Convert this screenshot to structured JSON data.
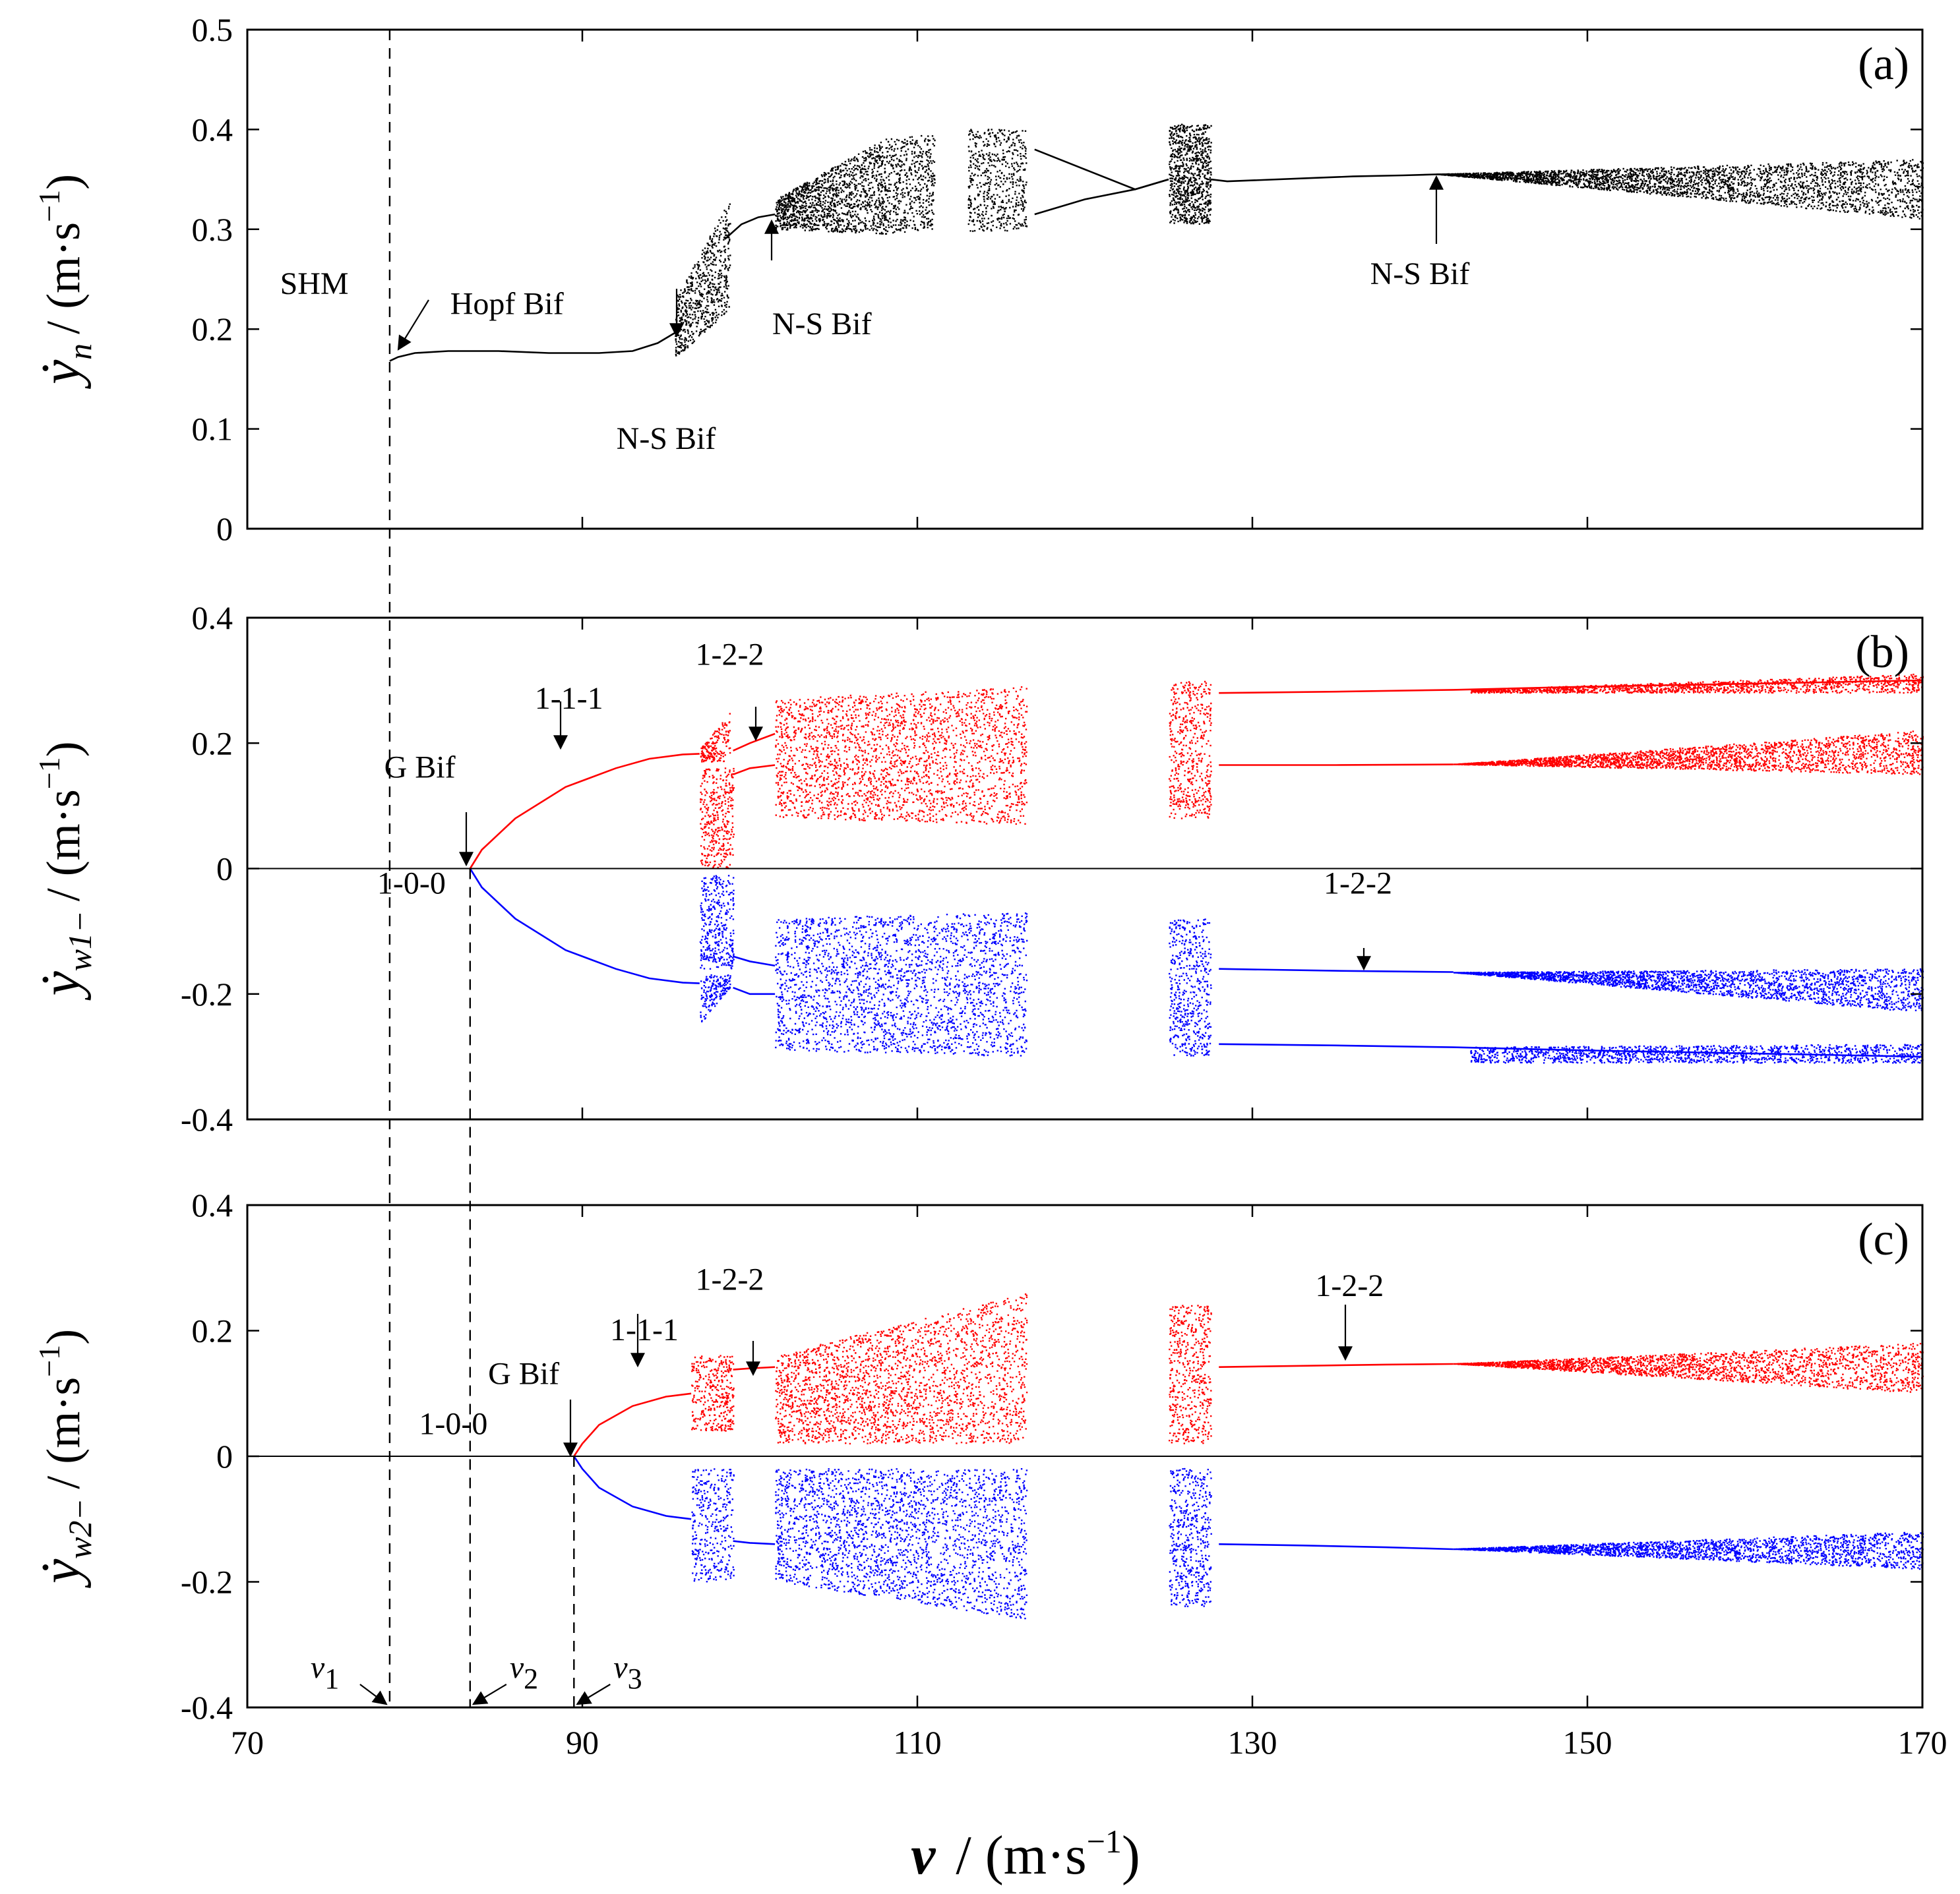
{
  "chart_data": {
    "type": "scatter",
    "subtype": "bifurcation-diagram",
    "shared_x": {
      "label_var": "v",
      "label_unit": "(m·s",
      "label_exp": "−1",
      "label_close": ")",
      "range": [
        70,
        170
      ],
      "ticks": [
        "70",
        "90",
        "110",
        "130",
        "150",
        "170"
      ]
    },
    "critical_speeds": [
      {
        "name": "v",
        "sub": "1",
        "x": 78.5
      },
      {
        "name": "v",
        "sub": "2",
        "x": 83.3
      },
      {
        "name": "v",
        "sub": "3",
        "x": 89.5
      }
    ],
    "panels": [
      {
        "id": "a",
        "label": "(a)",
        "ylabel_var": "ẏ",
        "ylabel_sub": "n",
        "ylabel_unit": "/ (m·s",
        "ylabel_exp": "−1",
        "ylabel_close": ")",
        "ylim": [
          0,
          0.5
        ],
        "yticks": [
          "0",
          "0.1",
          "0.2",
          "0.3",
          "0.4",
          "0.5"
        ],
        "color": "#000000",
        "branches": [
          {
            "x": [
              78.5,
              79,
              80,
              82,
              85,
              88,
              91,
              93,
              94.5,
              95.5,
              96
            ],
            "y": [
              0.168,
              0.172,
              0.176,
              0.178,
              0.178,
              0.176,
              0.176,
              0.178,
              0.186,
              0.196,
              0.205
            ]
          },
          {
            "x": [
              98.5,
              99.5,
              100.5,
              101.5
            ],
            "y": [
              0.29,
              0.305,
              0.312,
              0.315
            ]
          },
          {
            "x": [
              127.5,
              128.5,
              130,
              133,
              136,
              139,
              141,
              142
            ],
            "y": [
              0.35,
              0.348,
              0.349,
              0.351,
              0.353,
              0.354,
              0.355,
              0.355
            ]
          },
          {
            "x": [
              117,
              120,
              123,
              125
            ],
            "y": [
              0.38,
              0.36,
              0.34,
              0.35
            ]
          },
          {
            "x": [
              117,
              120,
              123,
              125
            ],
            "y": [
              0.315,
              0.33,
              0.34,
              0.35
            ]
          }
        ],
        "chaos_regions": [
          {
            "x": [
              95.5,
              98.8
            ],
            "y_lo": [
              0.17,
              0.22
            ],
            "y_hi": [
              0.23,
              0.33
            ],
            "density": 650
          },
          {
            "x": [
              101.5,
              108
            ],
            "y_lo": [
              0.3,
              0.295
            ],
            "y_hi": [
              0.33,
              0.39
            ],
            "density": 1300
          },
          {
            "x": [
              108,
              111
            ],
            "y_lo": [
              0.295,
              0.3
            ],
            "y_hi": [
              0.39,
              0.395
            ],
            "density": 500
          },
          {
            "x": [
              113,
              116.5
            ],
            "y_lo": [
              0.298,
              0.298
            ],
            "y_hi": [
              0.4,
              0.4
            ],
            "density": 550
          },
          {
            "x": [
              125,
              127.5
            ],
            "y_lo": [
              0.305,
              0.305
            ],
            "y_hi": [
              0.405,
              0.405
            ],
            "density": 900
          },
          {
            "x": [
              141,
              170
            ],
            "y_lo": [
              0.355,
              0.31
            ],
            "y_hi": [
              0.355,
              0.37
            ],
            "density": 3200
          }
        ],
        "zero_line": false,
        "annotations": [
          {
            "text": "SHM",
            "x": 74,
            "y": 0.235
          },
          {
            "text": "Hopf Bif",
            "x": 85.5,
            "y": 0.215
          },
          {
            "text": "N-S Bif",
            "x": 95,
            "y": 0.08
          },
          {
            "text": "N-S Bif",
            "x": 104.3,
            "y": 0.195
          },
          {
            "text": "N-S Bif",
            "x": 140,
            "y": 0.245
          }
        ]
      },
      {
        "id": "b",
        "label": "(b)",
        "ylabel_var": "ẏ",
        "ylabel_sub": "w1−",
        "ylabel_unit": "/ (m·s",
        "ylabel_exp": "−1",
        "ylabel_close": ")",
        "ylim": [
          -0.4,
          0.4
        ],
        "yticks": [
          "-0.4",
          "-0.2",
          "0",
          "0.2",
          "0.4"
        ],
        "zero_line": true,
        "branches": [
          {
            "color": "#ff0000",
            "x": [
              83.3,
              84,
              86,
              89,
              92,
              94,
              96,
              97
            ],
            "y": [
              0.0,
              0.03,
              0.08,
              0.13,
              0.16,
              0.175,
              0.182,
              0.183
            ]
          },
          {
            "color": "#0000ff",
            "x": [
              83.3,
              84,
              86,
              89,
              92,
              94,
              96,
              97
            ],
            "y": [
              0.0,
              -0.03,
              -0.08,
              -0.13,
              -0.16,
              -0.175,
              -0.182,
              -0.183
            ]
          },
          {
            "color": "#ff0000",
            "x": [
              99,
              100,
              101.5
            ],
            "y": [
              0.188,
              0.2,
              0.215
            ]
          },
          {
            "color": "#ff0000",
            "x": [
              99,
              100,
              101.5
            ],
            "y": [
              0.15,
              0.16,
              0.165
            ]
          },
          {
            "color": "#0000ff",
            "x": [
              99,
              100,
              101.5
            ],
            "y": [
              -0.14,
              -0.148,
              -0.155
            ]
          },
          {
            "color": "#0000ff",
            "x": [
              99,
              100,
              101.5
            ],
            "y": [
              -0.19,
              -0.2,
              -0.2
            ]
          },
          {
            "color": "#ff0000",
            "x": [
              128,
              135,
              142,
              150,
              160,
              170
            ],
            "y": [
              0.28,
              0.282,
              0.285,
              0.29,
              0.295,
              0.3
            ]
          },
          {
            "color": "#ff0000",
            "x": [
              128,
              135,
              142
            ],
            "y": [
              0.165,
              0.165,
              0.166
            ]
          },
          {
            "color": "#0000ff",
            "x": [
              128,
              135,
              142
            ],
            "y": [
              -0.16,
              -0.163,
              -0.165
            ]
          },
          {
            "color": "#0000ff",
            "x": [
              128,
              135,
              142,
              150,
              160,
              170
            ],
            "y": [
              -0.28,
              -0.282,
              -0.285,
              -0.29,
              -0.295,
              -0.3
            ]
          }
        ],
        "chaos_regions": [
          {
            "color": "#ff0000",
            "x": [
              97,
              98.8
            ],
            "y_lo": [
              0.17,
              0.17
            ],
            "y_hi": [
              0.19,
              0.25
            ],
            "density": 180
          },
          {
            "color": "#0000ff",
            "x": [
              97,
              98.8
            ],
            "y_lo": [
              -0.25,
              -0.19
            ],
            "y_hi": [
              -0.17,
              -0.17
            ],
            "density": 180
          },
          {
            "color": "#ff0000",
            "x": [
              97,
              99
            ],
            "y_lo": [
              0.0,
              0.0
            ],
            "y_hi": [
              0.16,
              0.16
            ],
            "density": 350
          },
          {
            "color": "#0000ff",
            "x": [
              97,
              99
            ],
            "y_lo": [
              -0.16,
              -0.16
            ],
            "y_hi": [
              -0.01,
              -0.01
            ],
            "density": 350
          },
          {
            "color": "#ff0000",
            "x": [
              101.5,
              116.5
            ],
            "y_lo": [
              0.08,
              0.07
            ],
            "y_hi": [
              0.27,
              0.29
            ],
            "density": 2400
          },
          {
            "color": "#0000ff",
            "x": [
              101.5,
              116.5
            ],
            "y_lo": [
              -0.29,
              -0.3
            ],
            "y_hi": [
              -0.08,
              -0.07
            ],
            "density": 2400
          },
          {
            "color": "#ff0000",
            "x": [
              125,
              127.5
            ],
            "y_lo": [
              0.08,
              0.08
            ],
            "y_hi": [
              0.3,
              0.3
            ],
            "density": 500
          },
          {
            "color": "#0000ff",
            "x": [
              125,
              127.5
            ],
            "y_lo": [
              -0.3,
              -0.3
            ],
            "y_hi": [
              -0.08,
              -0.08
            ],
            "density": 500
          },
          {
            "color": "#ff0000",
            "x": [
              142,
              170
            ],
            "y_lo": [
              0.166,
              0.15
            ],
            "y_hi": [
              0.166,
              0.22
            ],
            "density": 2600
          },
          {
            "color": "#0000ff",
            "x": [
              142,
              170
            ],
            "y_lo": [
              -0.166,
              -0.23
            ],
            "y_hi": [
              -0.166,
              -0.16
            ],
            "density": 2600
          },
          {
            "color": "#ff0000",
            "x": [
              143,
              170
            ],
            "y_lo": [
              0.28,
              0.28
            ],
            "y_hi": [
              0.285,
              0.31
            ],
            "density": 1400
          },
          {
            "color": "#0000ff",
            "x": [
              143,
              170
            ],
            "y_lo": [
              -0.31,
              -0.31
            ],
            "y_hi": [
              -0.285,
              -0.28
            ],
            "density": 1400
          }
        ],
        "annotations": [
          {
            "text": "1-1-1",
            "x": 89.2,
            "y": 0.255
          },
          {
            "text": "1-2-2",
            "x": 98.8,
            "y": 0.325
          },
          {
            "text": "G Bif",
            "x": 80.3,
            "y": 0.145
          },
          {
            "text": "1-0-0",
            "x": 79.8,
            "y": -0.04
          },
          {
            "text": "1-2-2",
            "x": 136.3,
            "y": -0.04
          }
        ]
      },
      {
        "id": "c",
        "label": "(c)",
        "ylabel_var": "ẏ",
        "ylabel_sub": "w2−",
        "ylabel_unit": "/ (m·s",
        "ylabel_exp": "−1",
        "ylabel_close": ")",
        "ylim": [
          -0.4,
          0.4
        ],
        "yticks": [
          "-0.4",
          "-0.2",
          "0",
          "0.2",
          "0.4"
        ],
        "zero_line": true,
        "branches": [
          {
            "color": "#ff0000",
            "x": [
              89.5,
              90,
              91,
              93,
              95,
              96.5
            ],
            "y": [
              0.0,
              0.02,
              0.05,
              0.08,
              0.095,
              0.1
            ]
          },
          {
            "color": "#0000ff",
            "x": [
              89.5,
              90,
              91,
              93,
              95,
              96.5
            ],
            "y": [
              0.0,
              -0.02,
              -0.05,
              -0.08,
              -0.095,
              -0.1
            ]
          },
          {
            "color": "#ff0000",
            "x": [
              99,
              100,
              101.5
            ],
            "y": [
              0.138,
              0.14,
              0.142
            ]
          },
          {
            "color": "#0000ff",
            "x": [
              99,
              100,
              101.5
            ],
            "y": [
              -0.135,
              -0.138,
              -0.14
            ]
          },
          {
            "color": "#ff0000",
            "x": [
              128,
              133,
              138,
              142
            ],
            "y": [
              0.142,
              0.144,
              0.146,
              0.147
            ]
          },
          {
            "color": "#0000ff",
            "x": [
              128,
              133,
              138,
              142
            ],
            "y": [
              -0.14,
              -0.142,
              -0.145,
              -0.148
            ]
          }
        ],
        "chaos_regions": [
          {
            "color": "#ff0000",
            "x": [
              96.5,
              99
            ],
            "y_lo": [
              0.04,
              0.04
            ],
            "y_hi": [
              0.16,
              0.16
            ],
            "density": 350
          },
          {
            "color": "#0000ff",
            "x": [
              96.5,
              99
            ],
            "y_lo": [
              -0.2,
              -0.2
            ],
            "y_hi": [
              -0.02,
              -0.02
            ],
            "density": 350
          },
          {
            "color": "#ff0000",
            "x": [
              101.5,
              116.5
            ],
            "y_lo": [
              0.02,
              0.02
            ],
            "y_hi": [
              0.16,
              0.26
            ],
            "density": 2400
          },
          {
            "color": "#0000ff",
            "x": [
              101.5,
              116.5
            ],
            "y_lo": [
              -0.2,
              -0.26
            ],
            "y_hi": [
              -0.02,
              -0.02
            ],
            "density": 2400
          },
          {
            "color": "#ff0000",
            "x": [
              125,
              127.5
            ],
            "y_lo": [
              0.02,
              0.02
            ],
            "y_hi": [
              0.24,
              0.24
            ],
            "density": 500
          },
          {
            "color": "#0000ff",
            "x": [
              125,
              127.5
            ],
            "y_lo": [
              -0.24,
              -0.24
            ],
            "y_hi": [
              -0.02,
              -0.02
            ],
            "density": 500
          },
          {
            "color": "#ff0000",
            "x": [
              142,
              170
            ],
            "y_lo": [
              0.147,
              0.1
            ],
            "y_hi": [
              0.147,
              0.18
            ],
            "density": 2400
          },
          {
            "color": "#0000ff",
            "x": [
              142,
              170
            ],
            "y_lo": [
              -0.148,
              -0.18
            ],
            "y_hi": [
              -0.148,
              -0.12
            ],
            "density": 2400
          }
        ],
        "annotations": [
          {
            "text": "1-2-2",
            "x": 98.8,
            "y": 0.265
          },
          {
            "text": "1-1-1",
            "x": 93.7,
            "y": 0.185
          },
          {
            "text": "G Bif",
            "x": 86.5,
            "y": 0.115
          },
          {
            "text": "1-0-0",
            "x": 82.3,
            "y": 0.035
          },
          {
            "text": "1-2-2",
            "x": 135.8,
            "y": 0.255
          }
        ]
      }
    ]
  }
}
